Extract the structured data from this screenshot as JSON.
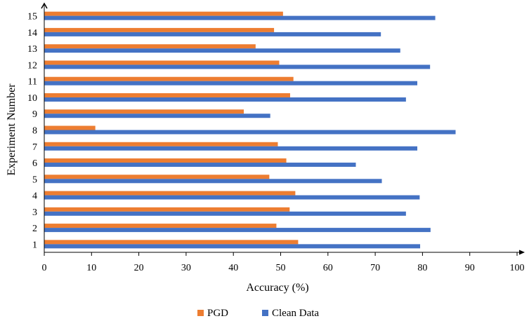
{
  "chart_data": {
    "type": "bar",
    "orientation": "horizontal",
    "categories": [
      "1",
      "2",
      "3",
      "4",
      "5",
      "6",
      "7",
      "8",
      "9",
      "10",
      "11",
      "12",
      "13",
      "14",
      "15"
    ],
    "series": [
      {
        "name": "PGD",
        "color": "#ED7D31",
        "values": [
          53.7,
          49.1,
          51.9,
          53.1,
          47.6,
          51.2,
          49.4,
          10.8,
          42.2,
          52.0,
          52.7,
          49.7,
          44.7,
          48.6,
          50.5
        ]
      },
      {
        "name": "Clean Data",
        "color": "#4472C4",
        "values": [
          79.5,
          81.7,
          76.5,
          79.4,
          71.4,
          65.9,
          78.9,
          87.0,
          47.8,
          76.5,
          78.9,
          81.6,
          75.3,
          71.2,
          82.7
        ]
      }
    ],
    "xlabel": "Accuracy (%)",
    "ylabel": "Experiment Number",
    "xlim": [
      0,
      100
    ],
    "xticks": [
      0,
      10,
      20,
      30,
      40,
      50,
      60,
      70,
      80,
      90,
      100
    ],
    "grid": false,
    "legend_position": "bottom"
  }
}
